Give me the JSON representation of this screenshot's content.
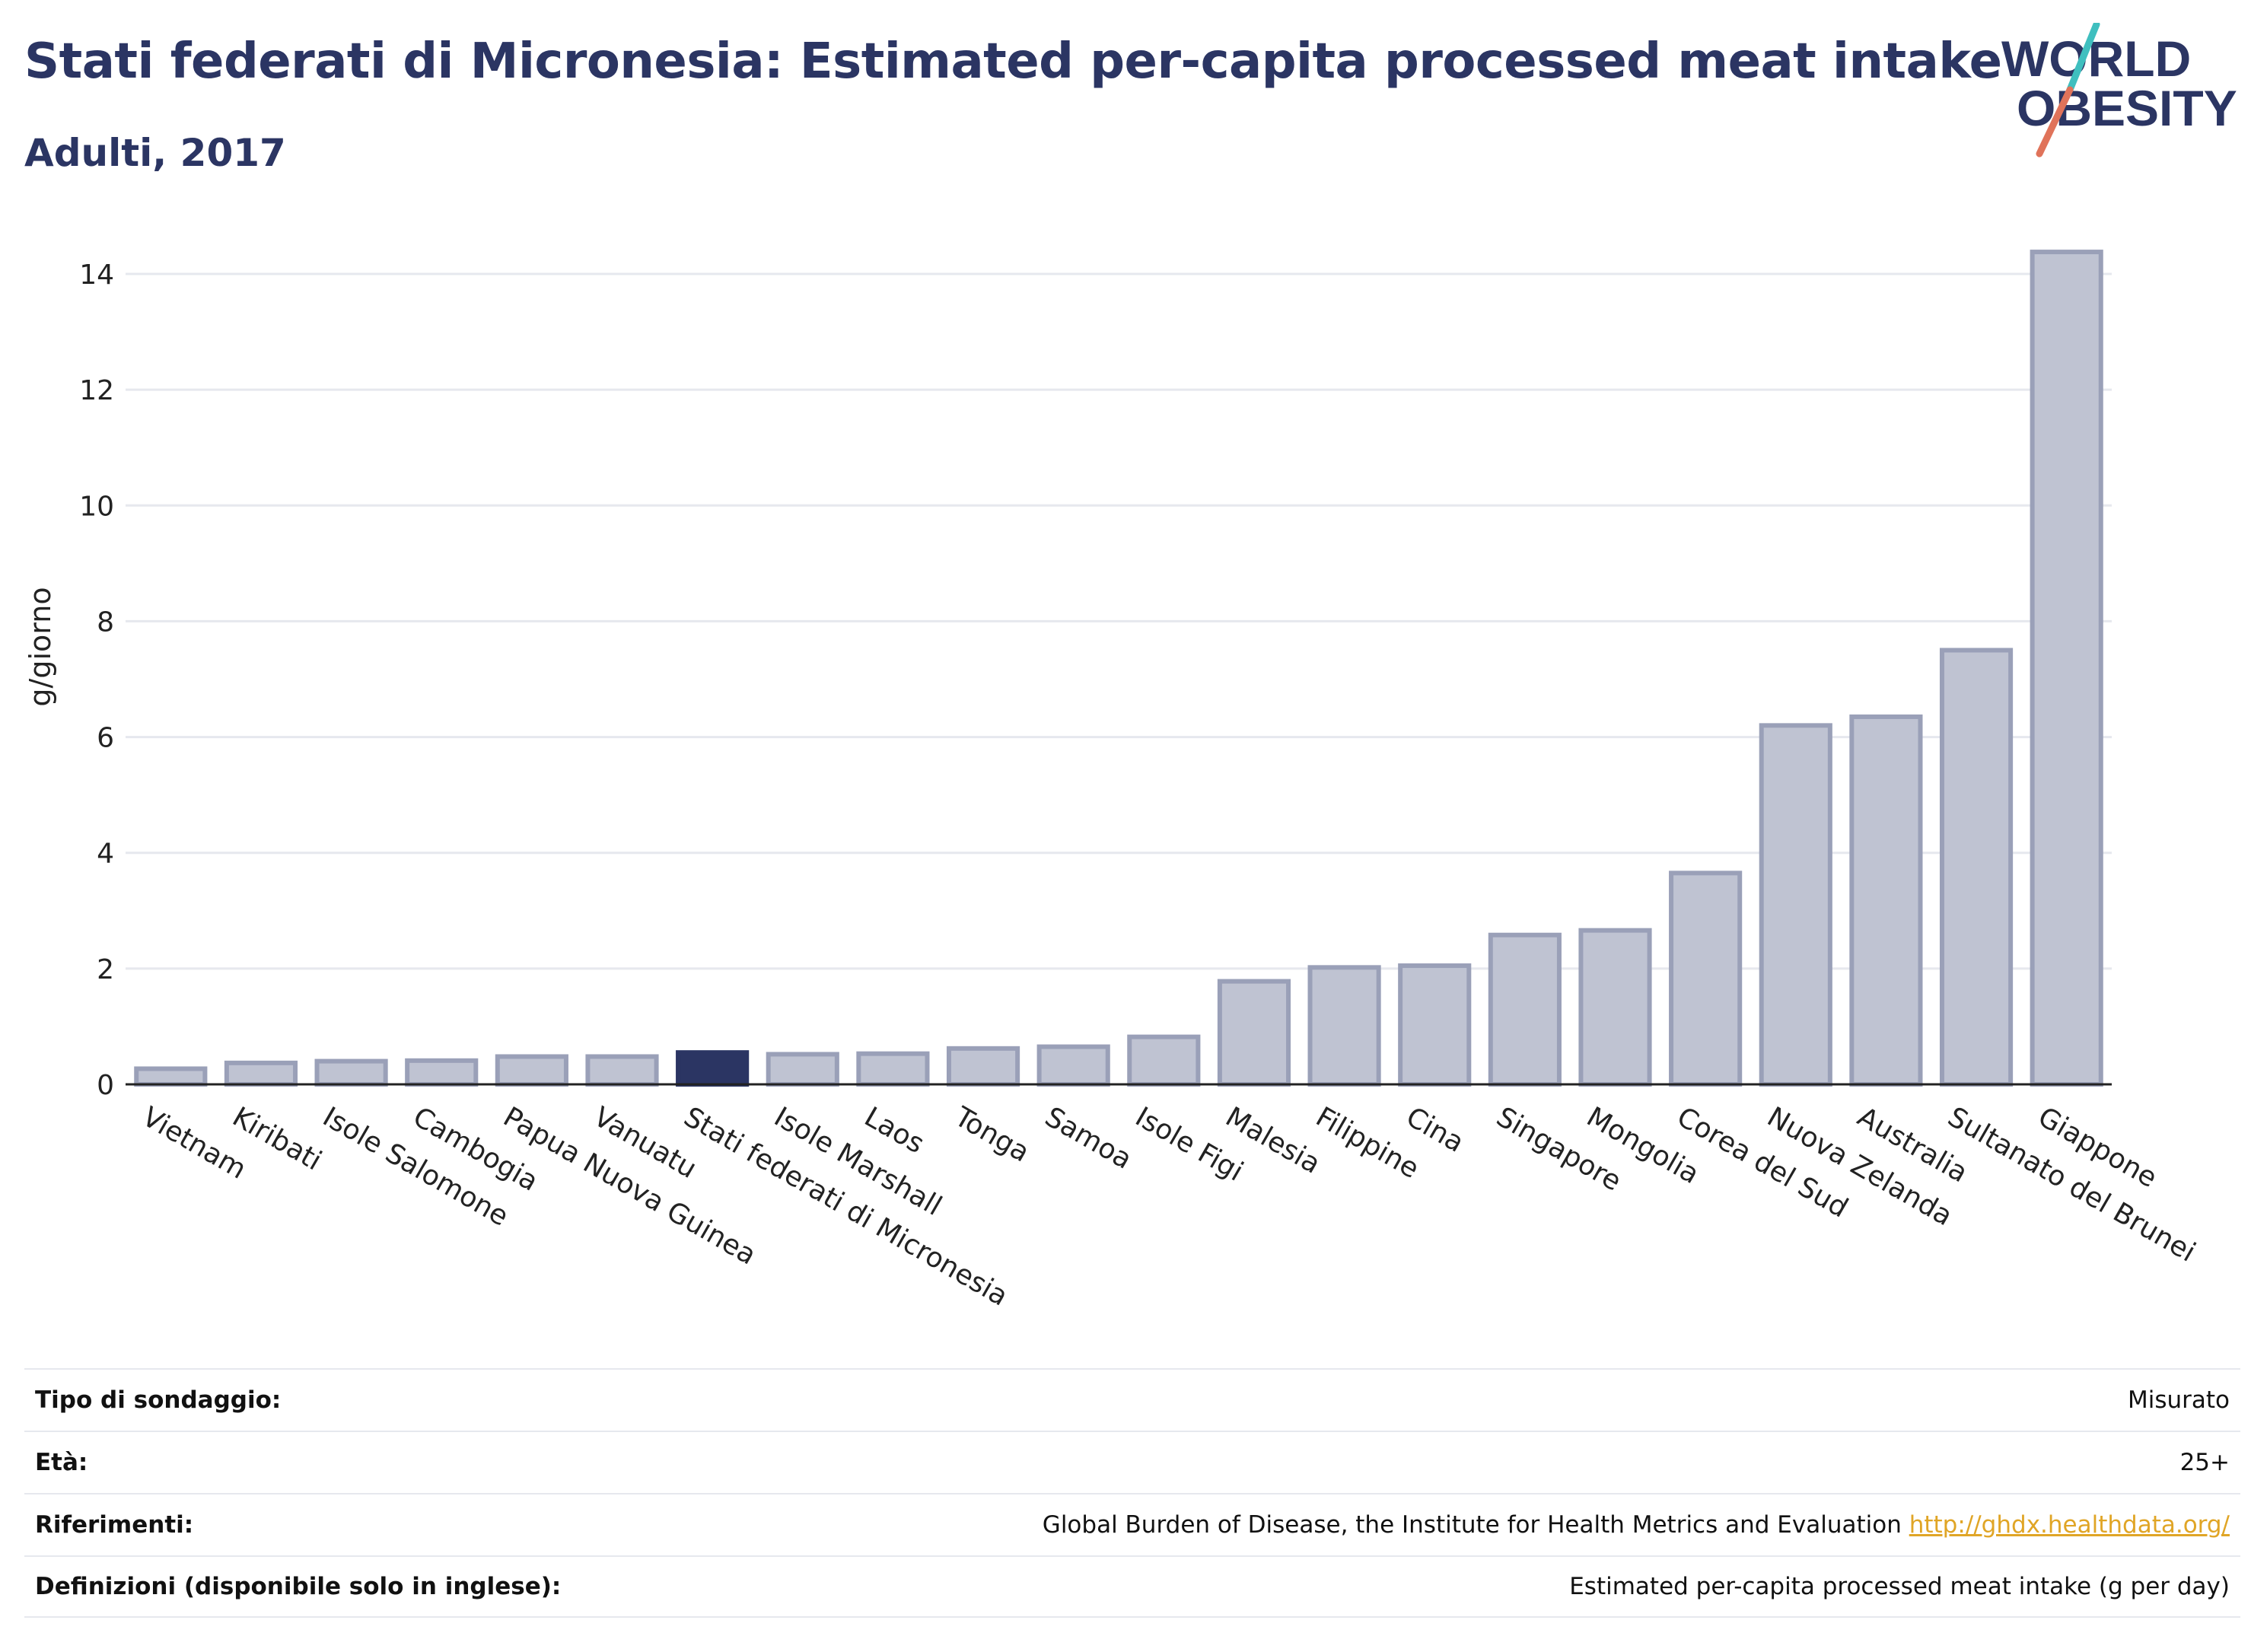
{
  "header": {
    "title": "Stati federati di Micronesia: Estimated per-capita processed meat intake",
    "subtitle": "Adulti, 2017"
  },
  "logo": {
    "line1": "WORLD",
    "line2": "OBESITY",
    "accent_colors": [
      "#3fbfbf",
      "#e0735a"
    ]
  },
  "colors": {
    "bar_default": "#bfc3d2",
    "bar_border": "#9aa0b8",
    "bar_highlight": "#2b3563",
    "text_dark": "#2b3563",
    "grid": "#e6e8ee",
    "link": "#e0a526"
  },
  "chart_data": {
    "type": "bar",
    "title": "Stati federati di Micronesia: Estimated per-capita processed meat intake",
    "subtitle": "Adulti, 2017",
    "xlabel": "",
    "ylabel": "g/giorno",
    "ylim": [
      0,
      15
    ],
    "yticks": [
      0,
      2,
      4,
      6,
      8,
      10,
      12,
      14
    ],
    "grid": true,
    "highlight": "Stati federati di Micronesia",
    "categories": [
      "Vietnam",
      "Kiribati",
      "Isole Salomone",
      "Cambogia",
      "Papua Nuova Guinea",
      "Vanuatu",
      "Stati federati di Micronesia",
      "Isole Marshall",
      "Laos",
      "Tonga",
      "Samoa",
      "Isole Figi",
      "Malesia",
      "Filippine",
      "Cina",
      "Singapore",
      "Mongolia",
      "Corea del Sud",
      "Nuova Zelanda",
      "Australia",
      "Sultanato del Brunei",
      "Giappone"
    ],
    "values": [
      0.27,
      0.37,
      0.4,
      0.41,
      0.48,
      0.48,
      0.55,
      0.52,
      0.53,
      0.62,
      0.65,
      0.82,
      1.78,
      2.02,
      2.05,
      2.58,
      2.66,
      3.65,
      6.2,
      6.35,
      7.5,
      14.38
    ]
  },
  "info_table": [
    {
      "label": "Tipo di sondaggio:",
      "value": "Misurato"
    },
    {
      "label": "Età:",
      "value": "25+"
    },
    {
      "label": "Riferimenti:",
      "value": "Global Burden of Disease, the Institute for Health Metrics and Evaluation",
      "link": "http://ghdx.healthdata.org/"
    },
    {
      "label": "Definizioni (disponibile solo in inglese):",
      "value": "Estimated per-capita processed meat intake (g per day)"
    }
  ]
}
